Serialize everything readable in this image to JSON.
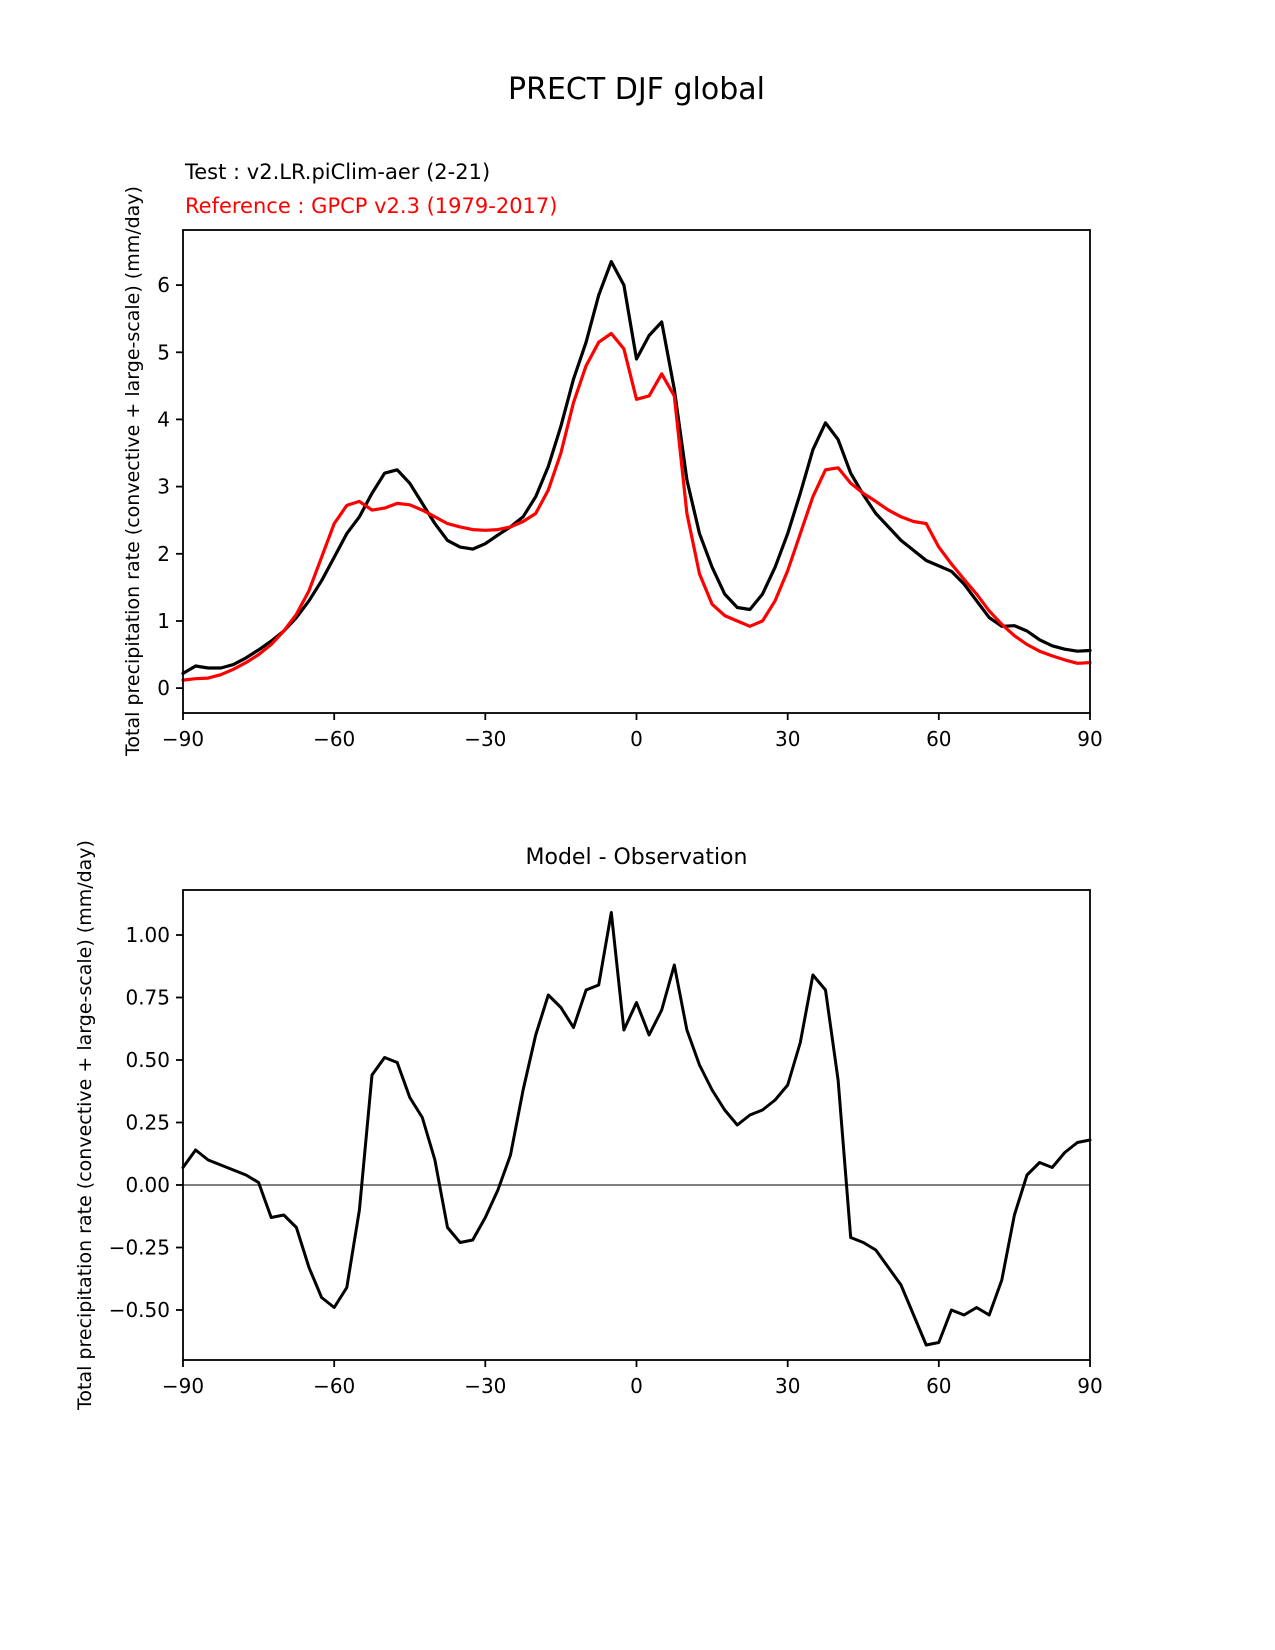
{
  "title": "PRECT DJF global",
  "legend": {
    "test_label": "Test : v2.LR.piClim-aer (2-21)",
    "test_color": "#000000",
    "reference_label": "Reference : GPCP v2.3 (1979-2017)",
    "reference_color": "#ff0000"
  },
  "chart_data": [
    {
      "type": "line",
      "title": "PRECT DJF global",
      "xlabel": "",
      "ylabel": "Total precipitation rate (convective + large-scale) (mm/day)",
      "xlim": [
        -90,
        90
      ],
      "ylim": [
        -0.37,
        6.82
      ],
      "xticks": [
        -90,
        -60,
        -30,
        0,
        30,
        60,
        90
      ],
      "xtick_labels": [
        "−90",
        "−60",
        "−30",
        "0",
        "30",
        "60",
        "90"
      ],
      "yticks": [
        0,
        1,
        2,
        3,
        4,
        5,
        6
      ],
      "ytick_labels": [
        "0",
        "1",
        "2",
        "3",
        "4",
        "5",
        "6"
      ],
      "grid": false,
      "legend_position": "top-left-above-axes",
      "zero_line": false,
      "x": [
        -90,
        -87.5,
        -85,
        -82.5,
        -80,
        -77.5,
        -75,
        -72.5,
        -70,
        -67.5,
        -65,
        -62.5,
        -60,
        -57.5,
        -55,
        -52.5,
        -50,
        -47.5,
        -45,
        -42.5,
        -40,
        -37.5,
        -35,
        -32.5,
        -30,
        -27.5,
        -25,
        -22.5,
        -20,
        -17.5,
        -15,
        -12.5,
        -10,
        -7.5,
        -5,
        -2.5,
        0,
        2.5,
        5,
        7.5,
        10,
        12.5,
        15,
        17.5,
        20,
        22.5,
        25,
        27.5,
        30,
        32.5,
        35,
        37.5,
        40,
        42.5,
        45,
        47.5,
        50,
        52.5,
        55,
        57.5,
        60,
        62.5,
        65,
        67.5,
        70,
        72.5,
        75,
        77.5,
        80,
        82.5,
        85,
        87.5,
        90
      ],
      "series": [
        {
          "name": "Test : v2.LR.piClim-aer (2-21)",
          "color": "#000000",
          "width": 3.2,
          "data_name": "test-series-line",
          "y": [
            0.22,
            0.33,
            0.3,
            0.3,
            0.35,
            0.45,
            0.57,
            0.7,
            0.85,
            1.05,
            1.3,
            1.6,
            1.95,
            2.3,
            2.55,
            2.9,
            3.2,
            3.25,
            3.05,
            2.75,
            2.45,
            2.2,
            2.1,
            2.07,
            2.15,
            2.28,
            2.4,
            2.55,
            2.85,
            3.3,
            3.9,
            4.6,
            5.15,
            5.85,
            6.35,
            6.0,
            4.9,
            5.25,
            5.45,
            4.45,
            3.1,
            2.3,
            1.8,
            1.4,
            1.2,
            1.17,
            1.4,
            1.8,
            2.3,
            2.9,
            3.55,
            3.95,
            3.7,
            3.2,
            2.88,
            2.6,
            2.4,
            2.2,
            2.05,
            1.9,
            1.82,
            1.74,
            1.55,
            1.3,
            1.05,
            0.92,
            0.93,
            0.85,
            0.72,
            0.63,
            0.58,
            0.55,
            0.56
          ]
        },
        {
          "name": "Reference : GPCP v2.3 (1979-2017)",
          "color": "#ff0000",
          "width": 3.2,
          "data_name": "reference-series-line",
          "y": [
            0.12,
            0.14,
            0.15,
            0.2,
            0.28,
            0.38,
            0.5,
            0.65,
            0.85,
            1.1,
            1.45,
            1.95,
            2.45,
            2.72,
            2.78,
            2.65,
            2.68,
            2.75,
            2.73,
            2.65,
            2.55,
            2.45,
            2.4,
            2.36,
            2.35,
            2.36,
            2.4,
            2.48,
            2.6,
            2.95,
            3.5,
            4.25,
            4.8,
            5.15,
            5.28,
            5.05,
            4.3,
            4.35,
            4.68,
            4.35,
            2.6,
            1.7,
            1.25,
            1.08,
            1.0,
            0.92,
            1.0,
            1.3,
            1.75,
            2.3,
            2.85,
            3.25,
            3.28,
            3.05,
            2.9,
            2.78,
            2.65,
            2.55,
            2.48,
            2.45,
            2.1,
            1.85,
            1.62,
            1.4,
            1.15,
            0.95,
            0.78,
            0.65,
            0.55,
            0.48,
            0.42,
            0.37,
            0.38
          ]
        }
      ]
    },
    {
      "type": "line",
      "title": "Model - Observation",
      "xlabel": "",
      "ylabel": "Total precipitation rate (convective + large-scale) (mm/day)",
      "xlim": [
        -90,
        90
      ],
      "ylim": [
        -0.7,
        1.18
      ],
      "xticks": [
        -90,
        -60,
        -30,
        0,
        30,
        60,
        90
      ],
      "xtick_labels": [
        "−90",
        "−60",
        "−30",
        "0",
        "30",
        "60",
        "90"
      ],
      "yticks": [
        -0.5,
        -0.25,
        0.0,
        0.25,
        0.5,
        0.75,
        1.0
      ],
      "ytick_labels": [
        "−0.50",
        "−0.25",
        "0.00",
        "0.25",
        "0.50",
        "0.75",
        "1.00"
      ],
      "grid": false,
      "zero_line": true,
      "zero_line_color": "#808080",
      "x": [
        -90,
        -87.5,
        -85,
        -82.5,
        -80,
        -77.5,
        -75,
        -72.5,
        -70,
        -67.5,
        -65,
        -62.5,
        -60,
        -57.5,
        -55,
        -52.5,
        -50,
        -47.5,
        -45,
        -42.5,
        -40,
        -37.5,
        -35,
        -32.5,
        -30,
        -27.5,
        -25,
        -22.5,
        -20,
        -17.5,
        -15,
        -12.5,
        -10,
        -7.5,
        -5,
        -2.5,
        0,
        2.5,
        5,
        7.5,
        10,
        12.5,
        15,
        17.5,
        20,
        22.5,
        25,
        27.5,
        30,
        32.5,
        35,
        37.5,
        40,
        42.5,
        45,
        47.5,
        50,
        52.5,
        55,
        57.5,
        60,
        62.5,
        65,
        67.5,
        70,
        72.5,
        75,
        77.5,
        80,
        82.5,
        85,
        87.5,
        90
      ],
      "series": [
        {
          "name": "Model - Observation",
          "color": "#000000",
          "width": 3.0,
          "data_name": "difference-series-line",
          "y": [
            0.07,
            0.14,
            0.1,
            0.08,
            0.06,
            0.04,
            0.01,
            -0.13,
            -0.12,
            -0.17,
            -0.33,
            -0.45,
            -0.49,
            -0.41,
            -0.1,
            0.44,
            0.51,
            0.49,
            0.35,
            0.27,
            0.1,
            -0.17,
            -0.23,
            -0.22,
            -0.13,
            -0.02,
            0.12,
            0.38,
            0.6,
            0.76,
            0.71,
            0.63,
            0.78,
            0.8,
            1.09,
            0.62,
            0.73,
            0.6,
            0.7,
            0.88,
            0.62,
            0.48,
            0.38,
            0.3,
            0.24,
            0.28,
            0.3,
            0.34,
            0.4,
            0.57,
            0.84,
            0.78,
            0.42,
            -0.21,
            -0.23,
            -0.26,
            -0.33,
            -0.4,
            -0.52,
            -0.64,
            -0.63,
            -0.5,
            -0.52,
            -0.49,
            -0.52,
            -0.38,
            -0.12,
            0.04,
            0.09,
            0.07,
            0.13,
            0.17,
            0.18
          ]
        }
      ]
    }
  ]
}
